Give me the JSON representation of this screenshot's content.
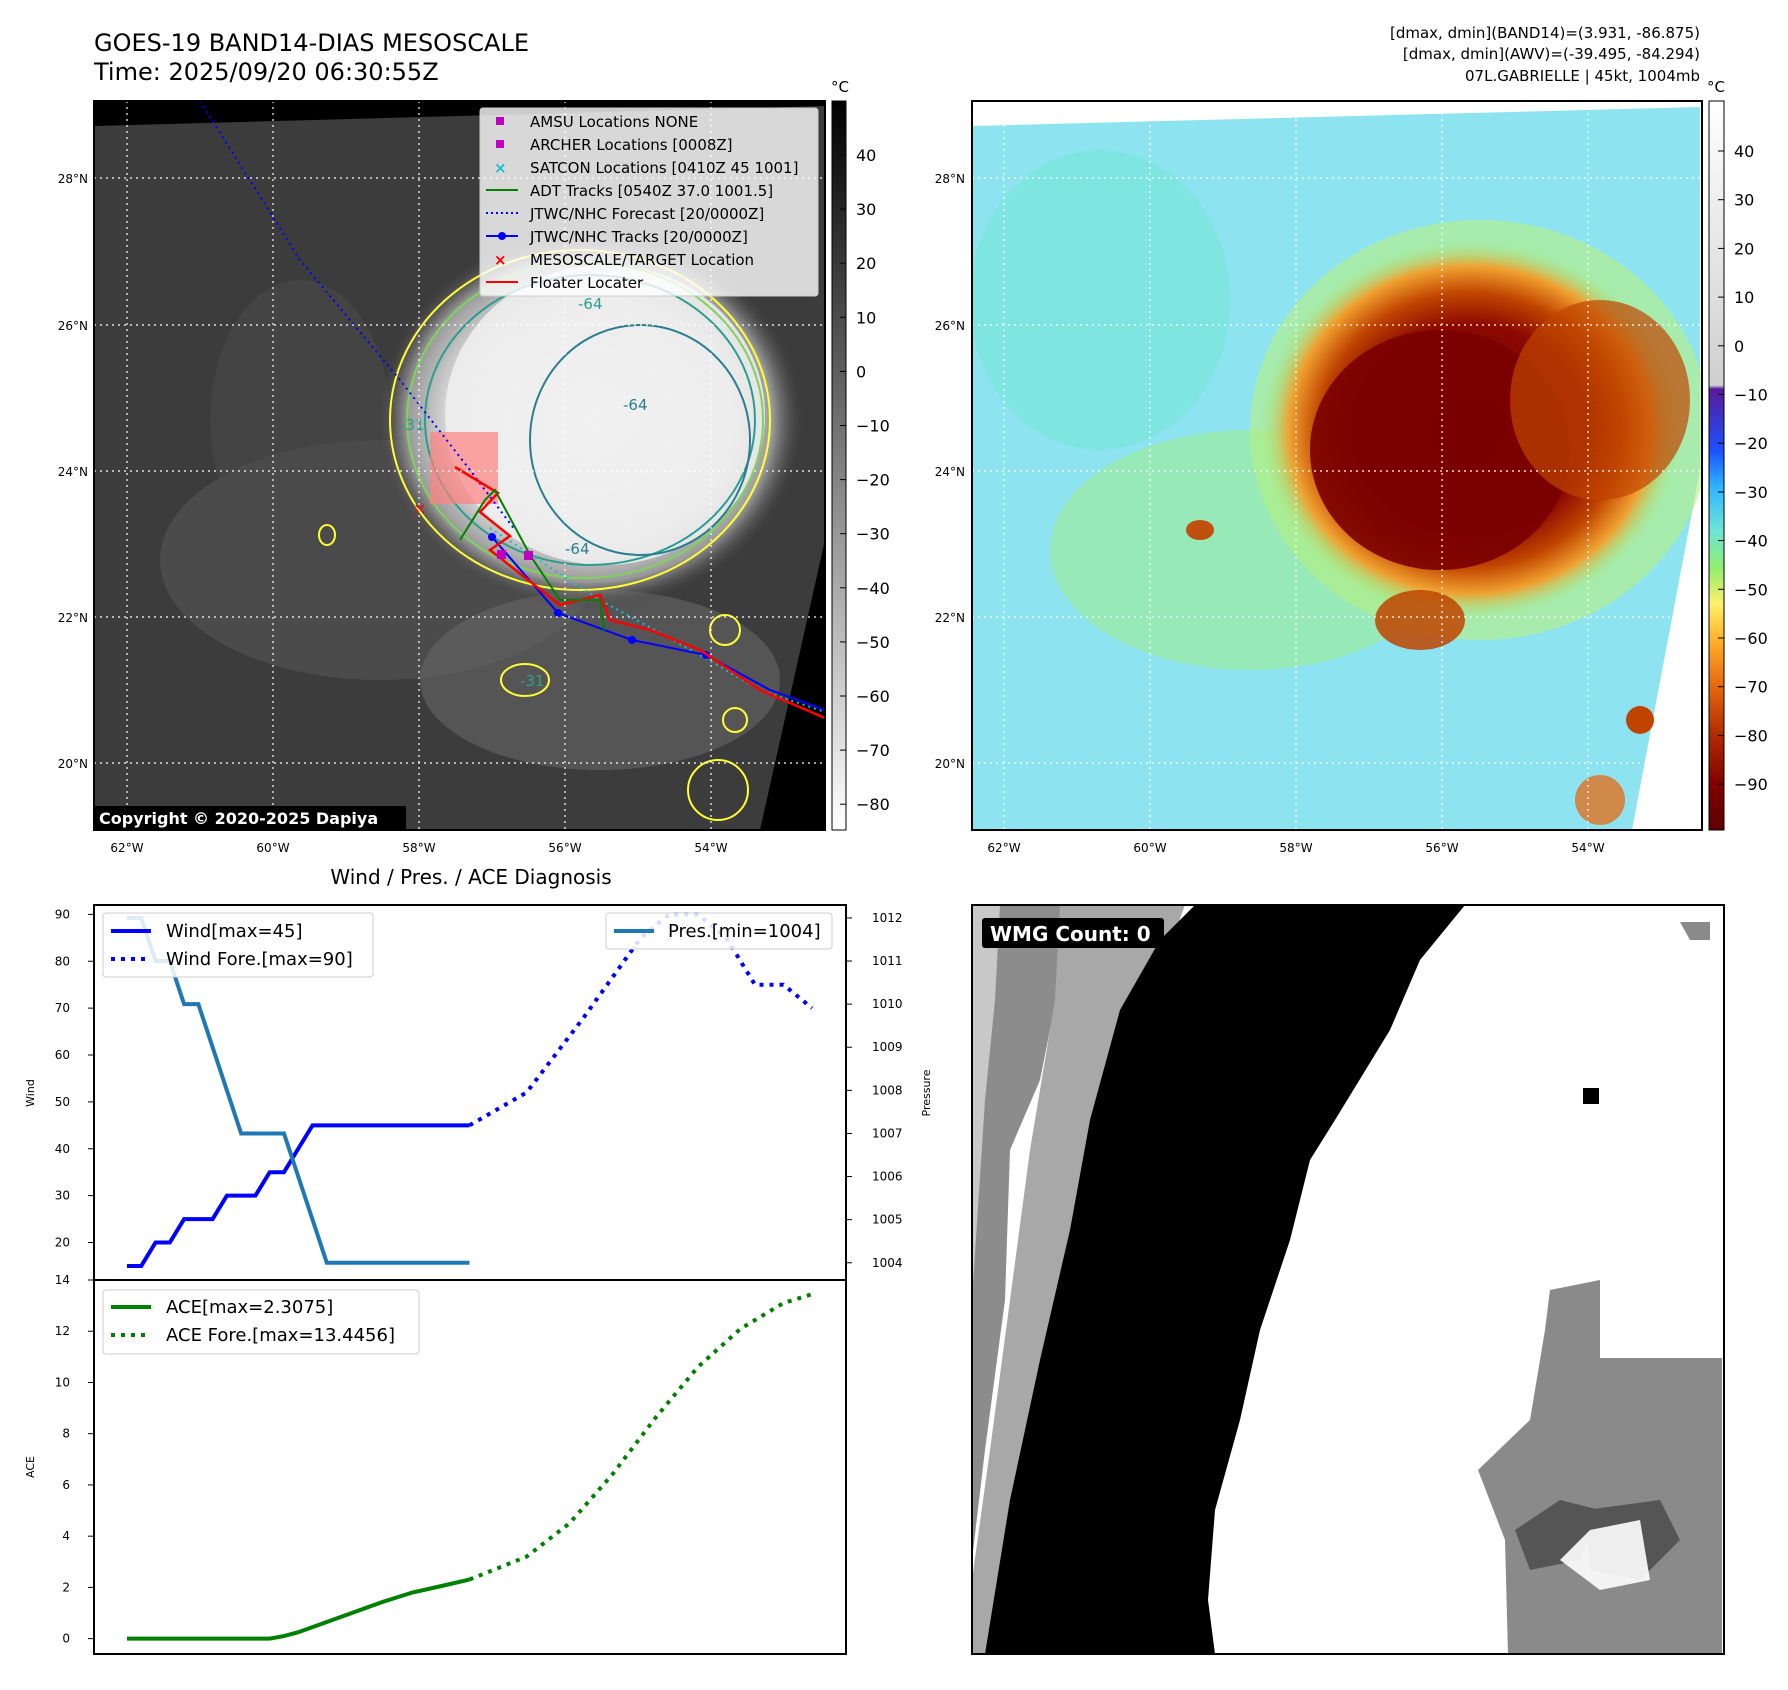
{
  "header": {
    "title_line1": "GOES-19 BAND14-DIAS MESOSCALE",
    "title_line2": "Time: 2025/09/20 06:30:55Z",
    "info_line1": "[dmax, dmin](BAND14)=(3.931, -86.875)",
    "info_line2": "[dmax, dmin](AWV)=(-39.495, -84.294)",
    "info_line3": "07L.GABRIELLE | 45kt, 1004mb"
  },
  "map": {
    "lat_labels": [
      "28°N",
      "26°N",
      "24°N",
      "22°N",
      "20°N"
    ],
    "lon_labels": [
      "62°W",
      "60°W",
      "58°W",
      "56°W",
      "54°W"
    ],
    "copyright": "Copyright © 2020-2025 Dapiya",
    "contour_labels": [
      "-64",
      "-64",
      "-64",
      "-31",
      "-31"
    ],
    "legend": [
      {
        "label": "AMSU Locations NONE",
        "marker": "square",
        "color": "#bf00bf"
      },
      {
        "label": "ARCHER Locations [0008Z]",
        "marker": "square",
        "color": "#bf00bf"
      },
      {
        "label": "SATCON Locations [0410Z 45 1001]",
        "marker": "x",
        "color": "#17becf"
      },
      {
        "label": "ADT Tracks [0540Z 37.0 1001.5]",
        "marker": "line",
        "color": "#008000"
      },
      {
        "label": "JTWC/NHC Forecast [20/0000Z]",
        "marker": "dotted",
        "color": "#0000ff"
      },
      {
        "label": "JTWC/NHC Tracks [20/0000Z]",
        "marker": "line-dot",
        "color": "#0000ff"
      },
      {
        "label": "MESOSCALE/TARGET Location",
        "marker": "x",
        "color": "#ff0000"
      },
      {
        "label": "Floater Locater",
        "marker": "line",
        "color": "#ff0000"
      }
    ]
  },
  "colorbar_left": {
    "unit": "°C",
    "ticks": [
      "40",
      "30",
      "20",
      "10",
      "0",
      "−10",
      "−20",
      "−30",
      "−40",
      "−50",
      "−60",
      "−70",
      "−80"
    ]
  },
  "colorbar_right": {
    "unit": "°C",
    "ticks": [
      "40",
      "30",
      "20",
      "10",
      "0",
      "−10",
      "−20",
      "−30",
      "−40",
      "−50",
      "−60",
      "−70",
      "−80",
      "−90"
    ]
  },
  "wmg": {
    "label": "WMG Count: 0"
  },
  "chart_data": [
    {
      "type": "line",
      "title": "Wind / Pres. / ACE Diagnosis",
      "ylabel": "Wind",
      "ylabel_right": "Pressure",
      "ylim": [
        12,
        92
      ],
      "ylim_right": [
        1003.6,
        1012.3
      ],
      "yticks": [
        20,
        30,
        40,
        50,
        60,
        70,
        80,
        90
      ],
      "yticks_right": [
        1004,
        1005,
        1006,
        1007,
        1008,
        1009,
        1010,
        1011,
        1012
      ],
      "legend": {
        "wind": "Wind[max=45]",
        "wind_fore": "Wind Fore.[max=90]",
        "pres": "Pres.[min=1004]"
      },
      "series": [
        {
          "name": "Wind[max=45]",
          "axis": "left",
          "style": "solid",
          "color": "#0000ff",
          "x": [
            0,
            1,
            2,
            3,
            4,
            5,
            6,
            7,
            8,
            9,
            10,
            11,
            12,
            13,
            14,
            15,
            16,
            17,
            18,
            19,
            20,
            21,
            22,
            23,
            24
          ],
          "values": [
            15,
            15,
            20,
            20,
            25,
            25,
            25,
            30,
            30,
            30,
            35,
            35,
            40,
            45,
            45,
            45,
            45,
            45,
            45,
            45,
            45,
            45,
            45,
            45,
            45
          ]
        },
        {
          "name": "Wind Fore.[max=90]",
          "axis": "left",
          "style": "dotted",
          "color": "#0000ff",
          "x": [
            24,
            28,
            32,
            36,
            38,
            40,
            42,
            44,
            46,
            48
          ],
          "values": [
            45,
            52,
            68,
            85,
            90,
            90,
            85,
            75,
            75,
            70
          ]
        },
        {
          "name": "Pres.[min=1004]",
          "axis": "right",
          "style": "solid",
          "color": "#1f77b4",
          "x": [
            0,
            1,
            2,
            3,
            4,
            5,
            6,
            7,
            8,
            9,
            10,
            11,
            12,
            13,
            14,
            15,
            16,
            17,
            18,
            19,
            20,
            21,
            22,
            23,
            24
          ],
          "values": [
            1012,
            1012,
            1011,
            1011,
            1010,
            1010,
            1009,
            1008,
            1007,
            1007,
            1007,
            1007,
            1006,
            1005,
            1004,
            1004,
            1004,
            1004,
            1004,
            1004,
            1004,
            1004,
            1004,
            1004,
            1004
          ]
        }
      ]
    },
    {
      "type": "line",
      "ylabel": "ACE",
      "ylim": [
        -0.6,
        14
      ],
      "yticks": [
        0,
        2,
        4,
        6,
        8,
        10,
        12,
        14
      ],
      "legend": {
        "ace": "ACE[max=2.3075]",
        "ace_fore": "ACE Fore.[max=13.4456]"
      },
      "series": [
        {
          "name": "ACE[max=2.3075]",
          "style": "solid",
          "color": "#008000",
          "x": [
            0,
            5,
            10,
            11,
            12,
            14,
            16,
            18,
            20,
            22,
            24
          ],
          "values": [
            0,
            0,
            0,
            0.1,
            0.25,
            0.65,
            1.05,
            1.45,
            1.8,
            2.05,
            2.3075
          ]
        },
        {
          "name": "ACE Fore.[max=13.4456]",
          "style": "dotted",
          "color": "#008000",
          "x": [
            24,
            28,
            31,
            34,
            37,
            40,
            43,
            46,
            48
          ],
          "values": [
            2.3075,
            3.2,
            4.5,
            6.4,
            8.6,
            10.6,
            12.1,
            13.1,
            13.4456
          ]
        }
      ]
    }
  ]
}
